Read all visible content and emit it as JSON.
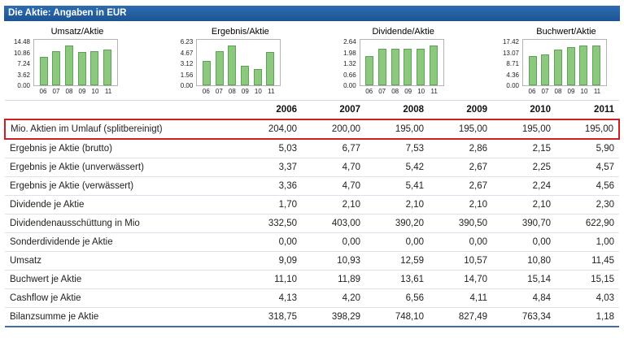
{
  "header": {
    "title": "Die Aktie: Angaben in EUR"
  },
  "colors": {
    "header_bg": "#1f5ea8",
    "bar_fill": "#8cc87e",
    "bar_border": "#5ea257",
    "highlight_red": "#cc1f1f"
  },
  "chart_data": [
    {
      "type": "bar",
      "title": "Umsatz/Aktie",
      "categories": [
        "06",
        "07",
        "08",
        "09",
        "10",
        "11"
      ],
      "values": [
        9.09,
        10.93,
        12.59,
        10.57,
        10.8,
        11.45
      ],
      "yticks": [
        "14.48",
        "10.86",
        "7.24",
        "3.62",
        "0.00"
      ],
      "ylim": [
        0,
        14.48
      ]
    },
    {
      "type": "bar",
      "title": "Ergebnis/Aktie",
      "categories": [
        "06",
        "07",
        "08",
        "09",
        "10",
        "11"
      ],
      "values": [
        3.37,
        4.7,
        5.42,
        2.67,
        2.25,
        4.57
      ],
      "yticks": [
        "6.23",
        "4.67",
        "3.12",
        "1.56",
        "0.00"
      ],
      "ylim": [
        0,
        6.23
      ]
    },
    {
      "type": "bar",
      "title": "Dividende/Aktie",
      "categories": [
        "06",
        "07",
        "08",
        "09",
        "10",
        "11"
      ],
      "values": [
        1.7,
        2.1,
        2.1,
        2.1,
        2.1,
        2.3
      ],
      "yticks": [
        "2.64",
        "1.98",
        "1.32",
        "0.66",
        "0.00"
      ],
      "ylim": [
        0,
        2.64
      ]
    },
    {
      "type": "bar",
      "title": "Buchwert/Aktie",
      "categories": [
        "06",
        "07",
        "08",
        "09",
        "10",
        "11"
      ],
      "values": [
        11.1,
        11.89,
        13.61,
        14.7,
        15.14,
        15.15
      ],
      "yticks": [
        "17.42",
        "13.07",
        "8.71",
        "4.36",
        "0.00"
      ],
      "ylim": [
        0,
        17.42
      ]
    }
  ],
  "table": {
    "years": [
      "2006",
      "2007",
      "2008",
      "2009",
      "2010",
      "2011"
    ],
    "rows": [
      {
        "label": "Mio. Aktien im Umlauf (splitbereinigt)",
        "values": [
          "204,00",
          "200,00",
          "195,00",
          "195,00",
          "195,00",
          "195,00"
        ],
        "highlight": true
      },
      {
        "label": "Ergebnis je Aktie (brutto)",
        "values": [
          "5,03",
          "6,77",
          "7,53",
          "2,86",
          "2,15",
          "5,90"
        ],
        "highlight": false
      },
      {
        "label": "Ergebnis je Aktie (unverwässert)",
        "values": [
          "3,37",
          "4,70",
          "5,42",
          "2,67",
          "2,25",
          "4,57"
        ],
        "highlight": false
      },
      {
        "label": "Ergebnis je Aktie (verwässert)",
        "values": [
          "3,36",
          "4,70",
          "5,41",
          "2,67",
          "2,24",
          "4,56"
        ],
        "highlight": false
      },
      {
        "label": "Dividende je Aktie",
        "values": [
          "1,70",
          "2,10",
          "2,10",
          "2,10",
          "2,10",
          "2,30"
        ],
        "highlight": false
      },
      {
        "label": "Dividendenausschüttung in Mio",
        "values": [
          "332,50",
          "403,00",
          "390,20",
          "390,50",
          "390,70",
          "622,90"
        ],
        "highlight": false
      },
      {
        "label": "Sonderdividende je Aktie",
        "values": [
          "0,00",
          "0,00",
          "0,00",
          "0,00",
          "0,00",
          "1,00"
        ],
        "highlight": false
      },
      {
        "label": "Umsatz",
        "values": [
          "9,09",
          "10,93",
          "12,59",
          "10,57",
          "10,80",
          "11,45"
        ],
        "highlight": false
      },
      {
        "label": "Buchwert je Aktie",
        "values": [
          "11,10",
          "11,89",
          "13,61",
          "14,70",
          "15,14",
          "15,15"
        ],
        "highlight": false
      },
      {
        "label": "Cashflow je Aktie",
        "values": [
          "4,13",
          "4,20",
          "6,56",
          "4,11",
          "4,84",
          "4,03"
        ],
        "highlight": false
      },
      {
        "label": "Bilanzsumme je Aktie",
        "values": [
          "318,75",
          "398,29",
          "748,10",
          "827,49",
          "763,34",
          "1,18"
        ],
        "highlight": false
      }
    ]
  }
}
